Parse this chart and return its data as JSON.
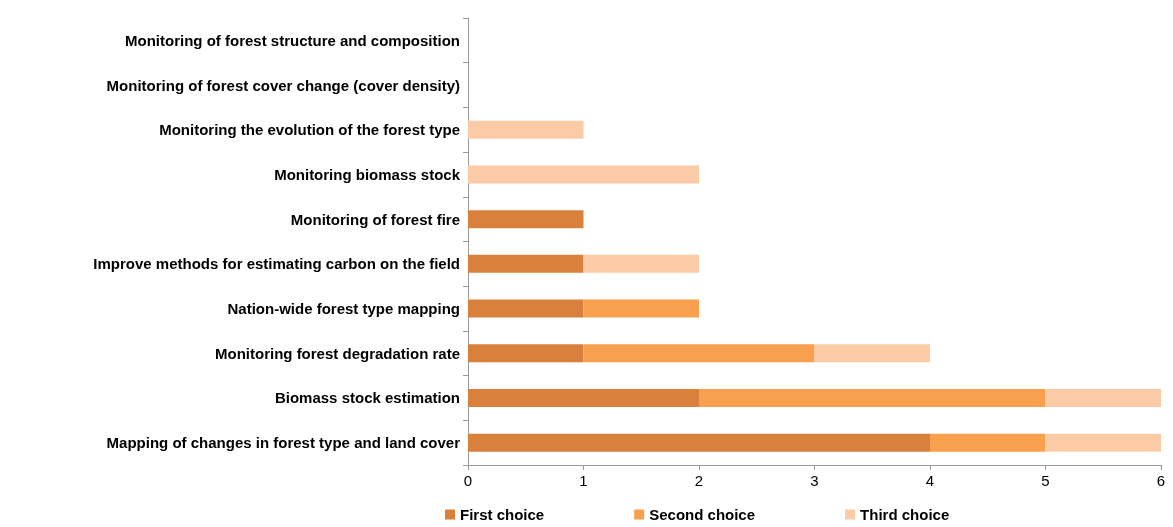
{
  "chart_data": {
    "type": "bar",
    "orientation": "horizontal",
    "stacked": true,
    "categories": [
      "Monitoring of forest structure and composition",
      "Monitoring of forest cover change (cover density)",
      "Monitoring the evolution of the forest type",
      "Monitoring biomass stock",
      "Monitoring of forest fire",
      "Improve methods for estimating carbon on the field",
      "Nation-wide forest type mapping",
      "Monitoring forest degradation rate",
      "Biomass stock estimation",
      "Mapping of changes in forest type and land cover"
    ],
    "series": [
      {
        "name": "First choice",
        "color": "#d9803d",
        "values": [
          0,
          0,
          0,
          0,
          1,
          1,
          1,
          1,
          2,
          4
        ]
      },
      {
        "name": "Second choice",
        "color": "#f9a04f",
        "values": [
          0,
          0,
          0,
          0,
          0,
          0,
          1,
          2,
          3,
          1
        ]
      },
      {
        "name": "Third choice",
        "color": "#fbcba7",
        "values": [
          0,
          0,
          1,
          2,
          0,
          1,
          0,
          1,
          1,
          1
        ]
      }
    ],
    "xlim": [
      0,
      6
    ],
    "xticks": [
      0,
      1,
      2,
      3,
      4,
      5,
      6
    ],
    "grid": false,
    "legend": "bottom"
  }
}
